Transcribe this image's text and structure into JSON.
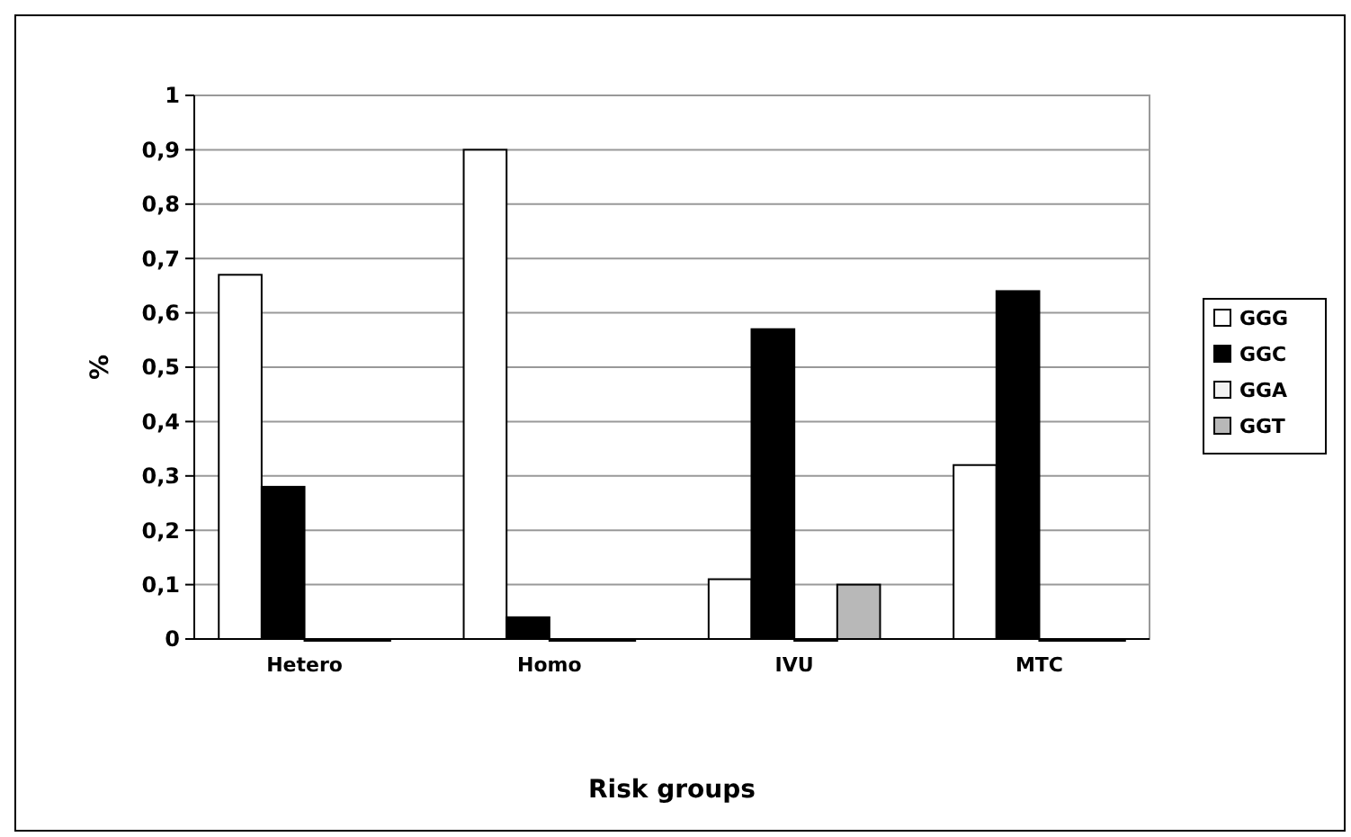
{
  "chart_data": {
    "type": "bar",
    "xlabel": "Risk groups",
    "ylabel": "%",
    "categories": [
      "Hetero",
      "Homo",
      "IVU",
      "MTC"
    ],
    "series": [
      {
        "name": "GGG",
        "color": "#ffffff",
        "values": [
          0.67,
          0.9,
          0.11,
          0.32
        ]
      },
      {
        "name": "GGC",
        "color": "#000000",
        "values": [
          0.28,
          0.04,
          0.57,
          0.64
        ]
      },
      {
        "name": "GGA",
        "color": "#f2f2f2",
        "values": [
          0,
          0,
          0,
          0
        ]
      },
      {
        "name": "GGT",
        "color": "#b8b8b8",
        "values": [
          0,
          0,
          0.1,
          0
        ]
      }
    ],
    "ylim": [
      0,
      1
    ],
    "yticks": [
      0,
      {
        "value": 0.1,
        "label": "0,1"
      },
      {
        "value": 0.2,
        "label": "0,2"
      },
      {
        "value": 0.3,
        "label": "0,3"
      },
      {
        "value": 0.4,
        "label": "0,4"
      },
      {
        "value": 0.5,
        "label": "0,5"
      },
      {
        "value": 0.6,
        "label": "0,6"
      },
      {
        "value": 0.7,
        "label": "0,7"
      },
      {
        "value": 0.8,
        "label": "0,8"
      },
      {
        "value": 0.9,
        "label": "0,9"
      },
      1
    ],
    "grid": "y",
    "legend": "right"
  }
}
